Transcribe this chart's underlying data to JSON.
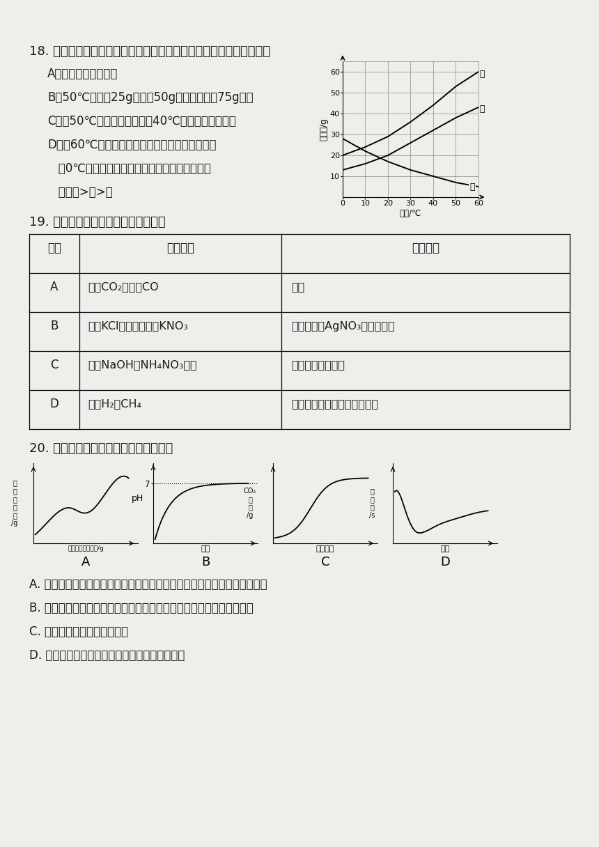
{
  "bg": "#f0eeea",
  "q18_line1": "18. 如图是甲、乙、丙三种固体物质的溶解度曲线。下列说法正确的是",
  "q18_opts": [
    "A．甲的溶解度大于乙",
    "B．50℃时，将25g乙加入50g水中，可形成75g溶液",
    "C．将50℃时甲的溶液降温至40℃，一定会析出晶体",
    "D．将60℃的甲、乙、丙三种物质的饱和溶液降温",
    "   至0℃，所得溶液中溶质质量分数由大到小的顺",
    "   序为乙>甲>丙"
  ],
  "q19_line1": "19. 下列实验操作能达到实验目的的是",
  "q19_headers": [
    "选项",
    "实验目的",
    "实验操作"
  ],
  "q19_rows": [
    [
      "A",
      "除去CO₂中少量CO",
      "点燃"
    ],
    [
      "B",
      "除去KCl溶液中少量的KNO₃",
      "加入适量的AgNO₃溶液，过滤"
    ],
    [
      "C",
      "鉴别NaOH和NH₄NO₃固体",
      "加水后测温度变化"
    ],
    [
      "D",
      "鉴别H₂和CH₄",
      "点燃，在火焰上方罩干冷烧杯"
    ]
  ],
  "q20_line1": "20. 下列坐标图与对应的叙述相符合的是",
  "q20_opts": [
    "A. 向硫酸和硫酸铜的混合溶液中逐滴加入一定溶质质量分数的氢氧化钠溶液",
    "B. 向一定质量的稀盐酸中逐滴加入等质量、等质量分数的氢氧化钠溶液",
    "C. 高温煅烧一定质量的石灰石",
    "D. 向一定量的饱和氢氧化钙溶液中加少量氧化钙"
  ],
  "sol_jia_x": [
    0,
    10,
    20,
    30,
    40,
    50,
    60
  ],
  "sol_jia_y": [
    20,
    24,
    29,
    36,
    44,
    53,
    60
  ],
  "sol_yi_x": [
    0,
    10,
    20,
    30,
    40,
    50,
    60
  ],
  "sol_yi_y": [
    13,
    16,
    20,
    26,
    32,
    38,
    43
  ],
  "sol_bing_x": [
    0,
    10,
    20,
    30,
    40,
    50,
    60
  ],
  "sol_bing_y": [
    28,
    22,
    17,
    13,
    10,
    7,
    5
  ]
}
